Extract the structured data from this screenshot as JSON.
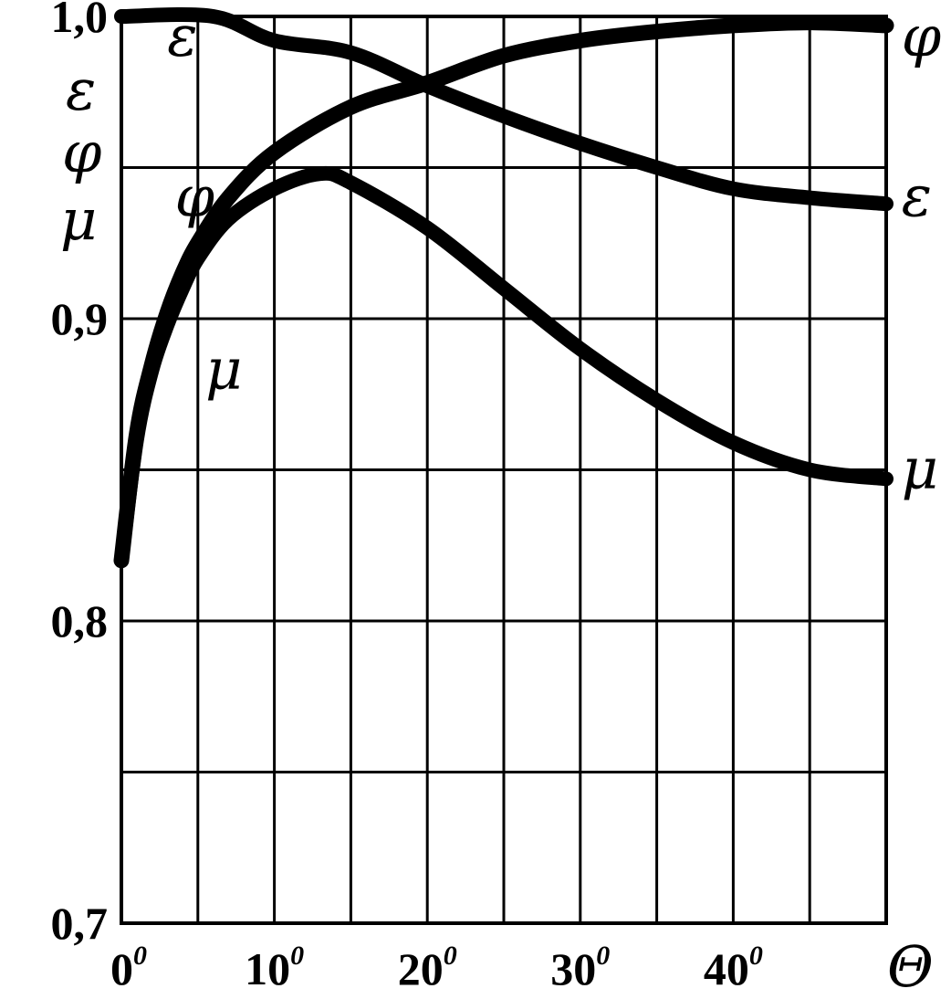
{
  "chart_data": {
    "type": "line",
    "xlabel": "Θ",
    "ylabel_symbols": [
      "ε",
      "φ",
      "μ"
    ],
    "xlim": [
      0,
      50
    ],
    "ylim": [
      0.7,
      1.0
    ],
    "grid": true,
    "x_ticks": [
      {
        "value": 0,
        "label": "0",
        "sup": "0"
      },
      {
        "value": 10,
        "label": "10",
        "sup": "0"
      },
      {
        "value": 20,
        "label": "20",
        "sup": "0"
      },
      {
        "value": 30,
        "label": "30",
        "sup": "0"
      },
      {
        "value": 40,
        "label": "40",
        "sup": "0"
      }
    ],
    "y_ticks": [
      {
        "value": 1.0,
        "label": "1,0"
      },
      {
        "value": 0.9,
        "label": "0,9"
      },
      {
        "value": 0.8,
        "label": "0,8"
      },
      {
        "value": 0.7,
        "label": "0,7"
      }
    ],
    "series": [
      {
        "name": "ε",
        "points": [
          [
            0,
            1.0
          ],
          [
            6,
            1.0
          ],
          [
            10,
            0.992
          ],
          [
            15,
            0.988
          ],
          [
            20,
            0.977
          ],
          [
            25,
            0.967
          ],
          [
            30,
            0.958
          ],
          [
            35,
            0.95
          ],
          [
            40,
            0.943
          ],
          [
            45,
            0.94
          ],
          [
            50,
            0.938
          ]
        ]
      },
      {
        "name": "φ",
        "points": [
          [
            0,
            0.82
          ],
          [
            1,
            0.862
          ],
          [
            2,
            0.885
          ],
          [
            3,
            0.902
          ],
          [
            4,
            0.915
          ],
          [
            5,
            0.925
          ],
          [
            7,
            0.94
          ],
          [
            10,
            0.955
          ],
          [
            15,
            0.97
          ],
          [
            20,
            0.978
          ],
          [
            25,
            0.987
          ],
          [
            30,
            0.992
          ],
          [
            35,
            0.995
          ],
          [
            40,
            0.997
          ],
          [
            45,
            0.998
          ],
          [
            50,
            0.997
          ]
        ]
      },
      {
        "name": "μ",
        "points": [
          [
            0,
            0.82
          ],
          [
            1,
            0.86
          ],
          [
            2,
            0.883
          ],
          [
            3,
            0.898
          ],
          [
            4,
            0.91
          ],
          [
            5,
            0.92
          ],
          [
            7,
            0.933
          ],
          [
            10,
            0.943
          ],
          [
            13,
            0.948
          ],
          [
            15,
            0.945
          ],
          [
            20,
            0.93
          ],
          [
            25,
            0.91
          ],
          [
            30,
            0.89
          ],
          [
            35,
            0.873
          ],
          [
            40,
            0.859
          ],
          [
            45,
            0.85
          ],
          [
            50,
            0.847
          ]
        ]
      }
    ],
    "curve_labels": [
      {
        "text": "ε",
        "series": "ε",
        "at": [
          3,
          0.993
        ]
      },
      {
        "text": "φ",
        "series": "φ",
        "at": [
          51,
          0.993
        ]
      },
      {
        "text": "ε",
        "series": "ε",
        "at": [
          51,
          0.94
        ]
      },
      {
        "text": "μ",
        "series": "μ",
        "at": [
          51,
          0.85
        ]
      },
      {
        "text": "φ",
        "series": "φ",
        "at": [
          3.5,
          0.94
        ]
      },
      {
        "text": "μ",
        "series": "μ",
        "at": [
          5.5,
          0.883
        ]
      }
    ]
  }
}
